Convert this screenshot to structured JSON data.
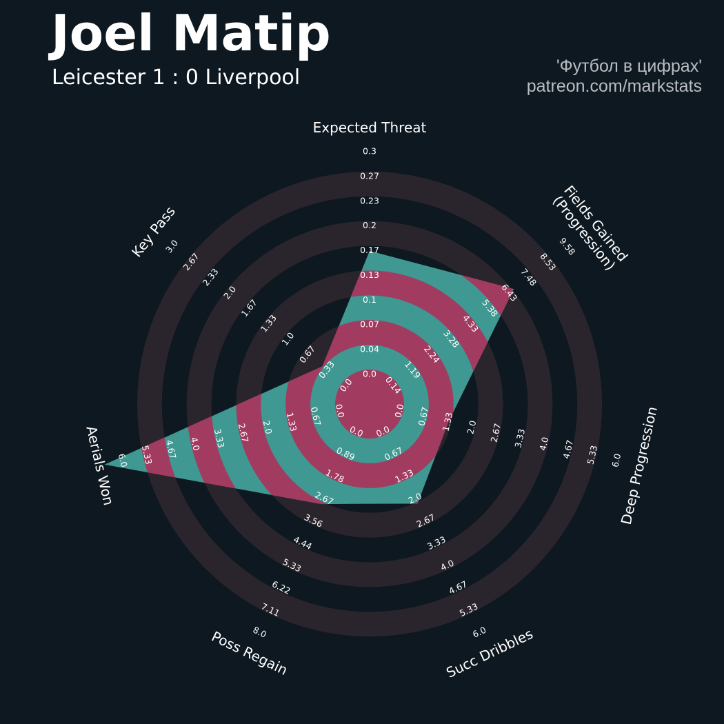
{
  "header": {
    "title": "Joel Matip",
    "subtitle": "Leicester 1 : 0 Liverpool",
    "credit_line1": "'Футбол в цифрах'",
    "credit_line2": "patreon.com/markstats"
  },
  "colors": {
    "background": "#0e1820",
    "ring": "#2a252c",
    "fill_teal": "#3f9891",
    "fill_pink": "#a23b60",
    "text": "#ffffff",
    "credit": "#b9bdc2"
  },
  "chart_data": {
    "type": "radar",
    "grid": true,
    "params": [
      {
        "label": "Expected Threat",
        "min": 0.0,
        "max": 0.3,
        "value": 0.16,
        "ticks": [
          "0.0",
          "0.04",
          "0.07",
          "0.1",
          "0.13",
          "0.17",
          "0.2",
          "0.23",
          "0.27",
          "0.3"
        ]
      },
      {
        "label": "Fields Gained\n(Progression)",
        "min": 0.14,
        "max": 9.58,
        "value": 6.5,
        "ticks": [
          "0.14",
          "1.19",
          "2.24",
          "3.28",
          "4.33",
          "5.38",
          "6.43",
          "7.48",
          "8.53",
          "9.58"
        ]
      },
      {
        "label": "Deep Progression",
        "min": 0.0,
        "max": 6.0,
        "value": 1.25,
        "ticks": [
          "0.0",
          "0.67",
          "1.33",
          "2.0",
          "2.67",
          "3.33",
          "4.0",
          "4.67",
          "5.33",
          "6.0"
        ]
      },
      {
        "label": "Succ Dribbles",
        "min": 0.0,
        "max": 6.0,
        "value": 2.05,
        "ticks": [
          "0.0",
          "0.67",
          "1.33",
          "2.0",
          "2.67",
          "3.33",
          "4.0",
          "4.67",
          "5.33",
          "6.0"
        ]
      },
      {
        "label": "Poss Regain",
        "min": 0.0,
        "max": 8.0,
        "value": 2.75,
        "ticks": [
          "0.0",
          "0.89",
          "1.78",
          "2.67",
          "3.56",
          "4.44",
          "5.33",
          "6.22",
          "7.11",
          "8.0"
        ]
      },
      {
        "label": "Aerials Won",
        "min": 0.0,
        "max": 6.0,
        "value": 6.4,
        "ticks": [
          "0.0",
          "0.67",
          "1.33",
          "2.0",
          "2.67",
          "3.33",
          "4.0",
          "4.67",
          "5.33",
          "6.0"
        ]
      },
      {
        "label": "Key Pass",
        "min": 0.0,
        "max": 3.0,
        "value": 0.35,
        "ticks": [
          "0.0",
          "0.33",
          "0.67",
          "1.0",
          "1.33",
          "1.67",
          "2.0",
          "2.33",
          "2.67",
          "3.0"
        ]
      }
    ]
  }
}
